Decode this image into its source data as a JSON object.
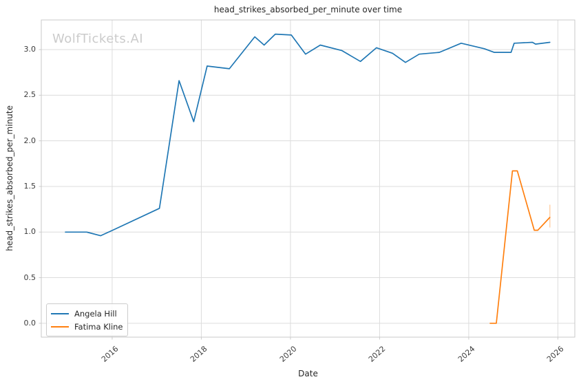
{
  "figure": {
    "watermark": "WolfTickets.AI"
  },
  "chart_data": {
    "type": "line",
    "title": "head_strikes_absorbed_per_minute over time",
    "xlabel": "Date",
    "ylabel": "head_strikes_absorbed_per_minute",
    "grid": true,
    "legend_position": "lower-left",
    "xlim": [
      2014.41,
      2026.38
    ],
    "ylim": [
      -0.152,
      3.325
    ],
    "x_ticks": [
      2016,
      2018,
      2020,
      2022,
      2024,
      2026
    ],
    "x_tick_labels": [
      "2016",
      "2018",
      "2020",
      "2022",
      "2024",
      "2026"
    ],
    "y_ticks": [
      0.0,
      0.5,
      1.0,
      1.5,
      2.0,
      2.5,
      3.0
    ],
    "y_tick_labels": [
      "0.0",
      "0.5",
      "1.0",
      "1.5",
      "2.0",
      "2.5",
      "3.0"
    ],
    "series": [
      {
        "name": "Angela Hill",
        "color": "#1f77b4",
        "x": [
          2014.95,
          2015.43,
          2015.74,
          2016.01,
          2017.06,
          2017.5,
          2017.83,
          2018.13,
          2018.63,
          2019.2,
          2019.41,
          2019.66,
          2020.02,
          2020.34,
          2020.67,
          2021.15,
          2021.57,
          2021.93,
          2022.29,
          2022.58,
          2022.89,
          2023.34,
          2023.83,
          2024.35,
          2024.57,
          2024.95,
          2025.02,
          2025.43,
          2025.5,
          2025.82
        ],
        "y": [
          1.0,
          1.0,
          0.96,
          1.02,
          1.26,
          2.66,
          2.21,
          2.82,
          2.79,
          3.14,
          3.05,
          3.17,
          3.16,
          2.95,
          3.05,
          2.99,
          2.87,
          3.02,
          2.96,
          2.86,
          2.95,
          2.97,
          3.07,
          3.01,
          2.97,
          2.97,
          3.07,
          3.08,
          3.06,
          3.08
        ]
      },
      {
        "name": "Fatima Kline",
        "color": "#ff7f0e",
        "x": [
          2024.48,
          2024.62,
          2024.98,
          2025.09,
          2025.47,
          2025.55,
          2025.82
        ],
        "y": [
          0.0,
          0.0,
          1.67,
          1.67,
          1.02,
          1.02,
          1.16
        ]
      }
    ],
    "annotations": [
      {
        "type": "error-bar",
        "series": "Fatima Kline",
        "x": 2025.82,
        "y_low": 1.05,
        "y_high": 1.3,
        "color": "#ff7f0e",
        "opacity": 0.35
      }
    ],
    "colors": {
      "grid": "#dcdcdc",
      "spine": "#c9c9c9",
      "tick": "#cccccc",
      "text": "#262626",
      "tick_label": "#3b3b3b",
      "watermark": "#cbcbcb",
      "legend_border": "#cccccc",
      "background": "#ffffff"
    }
  }
}
